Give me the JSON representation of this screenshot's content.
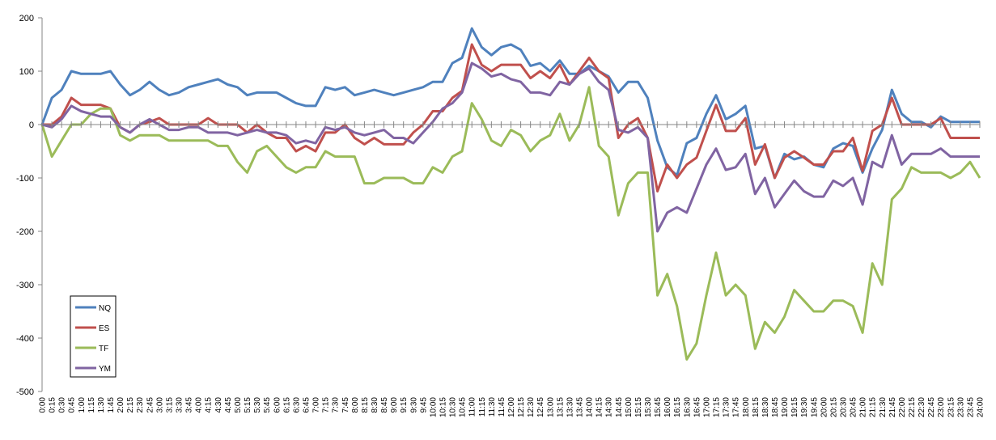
{
  "chart_data": {
    "type": "line",
    "title": "",
    "xlabel": "",
    "ylabel": "",
    "ylim": [
      -500,
      200
    ],
    "yticks": [
      200,
      100,
      0,
      -100,
      -200,
      -300,
      -400,
      -500
    ],
    "grid": false,
    "legend_placement": "bottom-left",
    "x": [
      "0:00",
      "0:15",
      "0:30",
      "0:45",
      "1:00",
      "1:15",
      "1:30",
      "1:45",
      "2:00",
      "2:15",
      "2:30",
      "2:45",
      "3:00",
      "3:15",
      "3:30",
      "3:45",
      "4:00",
      "4:15",
      "4:30",
      "4:45",
      "5:00",
      "5:15",
      "5:30",
      "5:45",
      "6:00",
      "6:15",
      "6:30",
      "6:45",
      "7:00",
      "7:15",
      "7:30",
      "7:45",
      "8:00",
      "8:15",
      "8:30",
      "8:45",
      "9:00",
      "9:15",
      "9:30",
      "9:45",
      "10:00",
      "10:15",
      "10:30",
      "10:45",
      "11:00",
      "11:15",
      "11:30",
      "11:45",
      "12:00",
      "12:15",
      "12:30",
      "12:45",
      "13:00",
      "13:15",
      "13:30",
      "13:45",
      "14:00",
      "14:15",
      "14:30",
      "14:45",
      "15:00",
      "15:15",
      "15:30",
      "15:45",
      "16:00",
      "16:15",
      "16:30",
      "16:45",
      "17:00",
      "17:15",
      "17:30",
      "17:45",
      "18:00",
      "18:15",
      "18:30",
      "18:45",
      "19:00",
      "19:15",
      "19:30",
      "19:45",
      "20:00",
      "20:15",
      "20:30",
      "20:45",
      "21:00",
      "21:15",
      "21:30",
      "21:45",
      "22:00",
      "22:15",
      "22:30",
      "22:45",
      "23:00",
      "23:15",
      "23:30",
      "23:45",
      "24:00"
    ],
    "series": [
      {
        "name": "NQ",
        "color": "#4F81BD",
        "values": [
          0,
          50,
          65,
          100,
          95,
          95,
          95,
          100,
          75,
          55,
          65,
          80,
          65,
          55,
          60,
          70,
          75,
          80,
          85,
          75,
          70,
          55,
          60,
          60,
          60,
          50,
          40,
          35,
          35,
          70,
          65,
          70,
          55,
          60,
          65,
          60,
          55,
          60,
          65,
          70,
          80,
          80,
          115,
          125,
          180,
          145,
          130,
          145,
          150,
          140,
          110,
          115,
          100,
          120,
          95,
          95,
          110,
          100,
          90,
          60,
          80,
          80,
          50,
          -30,
          -80,
          -95,
          -35,
          -25,
          20,
          55,
          10,
          20,
          35,
          -45,
          -40,
          -100,
          -55,
          -65,
          -60,
          -75,
          -80,
          -45,
          -35,
          -40,
          -90,
          -45,
          -10,
          65,
          20,
          5,
          5,
          -5,
          15,
          5,
          5,
          5,
          5
        ]
      },
      {
        "name": "ES",
        "color": "#C0504D",
        "values": [
          0,
          0,
          15,
          50,
          37,
          37,
          37,
          30,
          -5,
          -15,
          0,
          5,
          12,
          0,
          0,
          0,
          0,
          12,
          0,
          0,
          0,
          -15,
          0,
          -15,
          -25,
          -25,
          -50,
          -40,
          -50,
          -15,
          -15,
          0,
          -25,
          -37,
          -25,
          -37,
          -37,
          -37,
          -15,
          0,
          25,
          25,
          50,
          63,
          150,
          112,
          100,
          112,
          112,
          112,
          87,
          100,
          87,
          112,
          75,
          100,
          125,
          100,
          87,
          -25,
          0,
          12,
          -25,
          -125,
          -75,
          -100,
          -75,
          -62,
          -12,
          37,
          -12,
          -12,
          12,
          -75,
          -37,
          -100,
          -62,
          -50,
          -62,
          -75,
          -75,
          -50,
          -50,
          -25,
          -87,
          -12,
          0,
          50,
          0,
          0,
          0,
          0,
          12,
          -25,
          -25,
          -25,
          -25
        ]
      },
      {
        "name": "TF",
        "color": "#9BBB59",
        "values": [
          0,
          -60,
          -30,
          0,
          0,
          20,
          30,
          30,
          -20,
          -30,
          -20,
          -20,
          -20,
          -30,
          -30,
          -30,
          -30,
          -30,
          -40,
          -40,
          -70,
          -90,
          -50,
          -40,
          -60,
          -80,
          -90,
          -80,
          -80,
          -50,
          -60,
          -60,
          -60,
          -110,
          -110,
          -100,
          -100,
          -100,
          -110,
          -110,
          -80,
          -90,
          -60,
          -50,
          40,
          10,
          -30,
          -40,
          -10,
          -20,
          -50,
          -30,
          -20,
          20,
          -30,
          0,
          70,
          -40,
          -60,
          -170,
          -110,
          -90,
          -90,
          -320,
          -280,
          -340,
          -440,
          -410,
          -320,
          -240,
          -320,
          -300,
          -320,
          -420,
          -370,
          -390,
          -360,
          -310,
          -330,
          -350,
          -350,
          -330,
          -330,
          -340,
          -390,
          -260,
          -300,
          -140,
          -120,
          -80,
          -90,
          -90,
          -90,
          -100,
          -90,
          -70,
          -100
        ]
      },
      {
        "name": "YM",
        "color": "#8064A2",
        "values": [
          0,
          -5,
          10,
          35,
          25,
          20,
          15,
          15,
          -5,
          -15,
          0,
          10,
          0,
          -10,
          -10,
          -5,
          -5,
          -15,
          -15,
          -15,
          -20,
          -15,
          -10,
          -15,
          -15,
          -20,
          -35,
          -30,
          -35,
          -5,
          -10,
          -5,
          -15,
          -20,
          -15,
          -10,
          -25,
          -25,
          -35,
          -15,
          5,
          30,
          40,
          60,
          115,
          105,
          90,
          95,
          85,
          80,
          60,
          60,
          55,
          80,
          75,
          95,
          105,
          80,
          65,
          -10,
          -15,
          -5,
          -25,
          -200,
          -165,
          -155,
          -165,
          -120,
          -75,
          -45,
          -85,
          -80,
          -55,
          -130,
          -100,
          -155,
          -130,
          -105,
          -125,
          -135,
          -135,
          -105,
          -115,
          -100,
          -150,
          -70,
          -80,
          -20,
          -75,
          -55,
          -55,
          -55,
          -45,
          -60,
          -60,
          -60,
          -60
        ]
      }
    ]
  }
}
